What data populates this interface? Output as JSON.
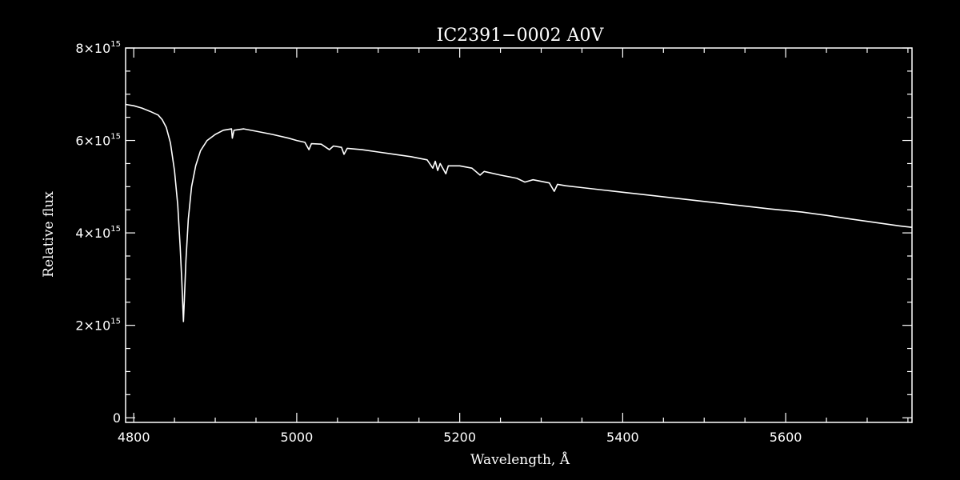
{
  "chart_data": {
    "type": "line",
    "title": "IC2391−0002  A0V",
    "xlabel": "Wavelength, Å",
    "ylabel": "Relative flux",
    "xlim": [
      4790,
      5755
    ],
    "ylim": [
      -100000000000000.0,
      8000000000000000.0
    ],
    "x_ticks": [
      4800,
      5000,
      5200,
      5400,
      5600
    ],
    "x_tick_labels": [
      "4800",
      "5000",
      "5200",
      "5400",
      "5600"
    ],
    "y_ticks": [
      0,
      2000000000000000.0,
      4000000000000000.0,
      6000000000000000.0,
      8000000000000000.0
    ],
    "y_tick_labels": [
      {
        "base": "0",
        "exp": ""
      },
      {
        "base": "2×10",
        "exp": "15"
      },
      {
        "base": "4×10",
        "exp": "15"
      },
      {
        "base": "6×10",
        "exp": "15"
      },
      {
        "base": "8×10",
        "exp": "15"
      }
    ],
    "grid": false,
    "series": [
      {
        "color": "#ffffff",
        "points": [
          [
            4790,
            6780000000000000.0
          ],
          [
            4800,
            6750000000000000.0
          ],
          [
            4810,
            6700000000000000.0
          ],
          [
            4820,
            6630000000000000.0
          ],
          [
            4830,
            6550000000000000.0
          ],
          [
            4835,
            6450000000000000.0
          ],
          [
            4840,
            6280000000000000.0
          ],
          [
            4845,
            5950000000000000.0
          ],
          [
            4850,
            5350000000000000.0
          ],
          [
            4854,
            4600000000000000.0
          ],
          [
            4857,
            3700000000000000.0
          ],
          [
            4859,
            2950000000000000.0
          ],
          [
            4860,
            2500000000000000.0
          ],
          [
            4861,
            2080000000000000.0
          ],
          [
            4862,
            2500000000000000.0
          ],
          [
            4864,
            3400000000000000.0
          ],
          [
            4867,
            4300000000000000.0
          ],
          [
            4871,
            5000000000000000.0
          ],
          [
            4876,
            5450000000000000.0
          ],
          [
            4882,
            5780000000000000.0
          ],
          [
            4890,
            6000000000000000.0
          ],
          [
            4900,
            6130000000000000.0
          ],
          [
            4910,
            6220000000000000.0
          ],
          [
            4920,
            6250000000000000.0
          ],
          [
            4921,
            6050000000000000.0
          ],
          [
            4923,
            6220000000000000.0
          ],
          [
            4935,
            6250000000000000.0
          ],
          [
            4950,
            6200000000000000.0
          ],
          [
            4970,
            6130000000000000.0
          ],
          [
            4990,
            6050000000000000.0
          ],
          [
            5000,
            6000000000000000.0
          ],
          [
            5010,
            5960000000000000.0
          ],
          [
            5015,
            5800000000000000.0
          ],
          [
            5018,
            5930000000000000.0
          ],
          [
            5030,
            5920000000000000.0
          ],
          [
            5040,
            5800000000000000.0
          ],
          [
            5045,
            5880000000000000.0
          ],
          [
            5055,
            5850000000000000.0
          ],
          [
            5058,
            5700000000000000.0
          ],
          [
            5062,
            5830000000000000.0
          ],
          [
            5080,
            5800000000000000.0
          ],
          [
            5100,
            5750000000000000.0
          ],
          [
            5120,
            5700000000000000.0
          ],
          [
            5140,
            5650000000000000.0
          ],
          [
            5160,
            5580000000000000.0
          ],
          [
            5167,
            5400000000000000.0
          ],
          [
            5170,
            5550000000000000.0
          ],
          [
            5173,
            5350000000000000.0
          ],
          [
            5176,
            5500000000000000.0
          ],
          [
            5183,
            5280000000000000.0
          ],
          [
            5186,
            5450000000000000.0
          ],
          [
            5200,
            5450000000000000.0
          ],
          [
            5215,
            5400000000000000.0
          ],
          [
            5225,
            5250000000000000.0
          ],
          [
            5230,
            5330000000000000.0
          ],
          [
            5250,
            5250000000000000.0
          ],
          [
            5270,
            5180000000000000.0
          ],
          [
            5280,
            5100000000000000.0
          ],
          [
            5290,
            5150000000000000.0
          ],
          [
            5310,
            5080000000000000.0
          ],
          [
            5316,
            4900000000000000.0
          ],
          [
            5320,
            5050000000000000.0
          ],
          [
            5330,
            5020000000000000.0
          ],
          [
            5350,
            4980000000000000.0
          ],
          [
            5380,
            4920000000000000.0
          ],
          [
            5400,
            4880000000000000.0
          ],
          [
            5430,
            4820000000000000.0
          ],
          [
            5460,
            4760000000000000.0
          ],
          [
            5500,
            4680000000000000.0
          ],
          [
            5540,
            4600000000000000.0
          ],
          [
            5580,
            4520000000000000.0
          ],
          [
            5620,
            4450000000000000.0
          ],
          [
            5650,
            4380000000000000.0
          ],
          [
            5680,
            4300000000000000.0
          ],
          [
            5700,
            4250000000000000.0
          ],
          [
            5720,
            4200000000000000.0
          ],
          [
            5740,
            4150000000000000.0
          ],
          [
            5755,
            4120000000000000.0
          ]
        ]
      }
    ]
  }
}
